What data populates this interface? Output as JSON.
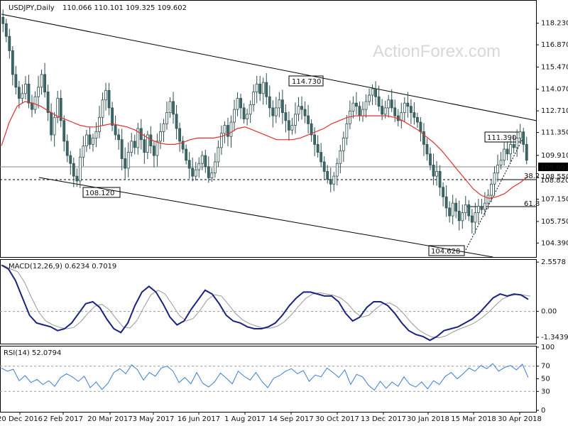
{
  "header": {
    "symbol_label": "USDJPY,Daily",
    "ohlc": "110.066 110.101 109.325 109.602"
  },
  "watermark": "ActionForex.com",
  "chart_data": [
    {
      "type": "candlestick",
      "title": "USDJPY,Daily",
      "ylim": [
        103.6,
        119.6
      ],
      "y_ticks": [
        "118.230",
        "116.870",
        "115.470",
        "114.070",
        "112.710",
        "111.350",
        "109.910",
        "108.550",
        "107.150",
        "105.750",
        "104.390"
      ],
      "x_ticks": [
        "20 Dec 2016",
        "2 Feb 2017",
        "20 Mar 2017",
        "3 May 2017",
        "16 Jun 2017",
        "1 Aug 2017",
        "14 Sep 2017",
        "30 Oct 2017",
        "13 Dec 2017",
        "30 Jan 2018",
        "15 Mar 2018",
        "30 Apr 2018"
      ],
      "last_price": "109.602",
      "level_label": "108.820",
      "level": 108.82,
      "annotations": [
        "114.730",
        "108.120",
        "104.628",
        "111.390"
      ],
      "fib_labels": [
        "38.2",
        "61.8"
      ],
      "close_series": [
        118.2,
        117.4,
        116.5,
        115.0,
        114.2,
        113.5,
        113.8,
        114.4,
        113.2,
        112.8,
        113.6,
        114.2,
        115.0,
        113.9,
        112.6,
        111.2,
        112.3,
        113.5,
        112.1,
        110.8,
        109.9,
        109.4,
        108.6,
        108.3,
        109.8,
        110.5,
        111.2,
        110.6,
        111.0,
        111.4,
        112.3,
        113.4,
        114.0,
        112.9,
        111.8,
        111.2,
        110.9,
        109.7,
        109.1,
        110.1,
        110.8,
        110.4,
        111.6,
        110.9,
        110.1,
        111.2,
        110.5,
        109.9,
        110.8,
        111.4,
        111.9,
        112.6,
        113.3,
        112.5,
        111.6,
        110.8,
        110.3,
        109.6,
        109.1,
        108.6,
        109.0,
        109.4,
        109.9,
        109.2,
        108.5,
        108.8,
        109.5,
        110.4,
        111.3,
        111.8,
        111.1,
        112.0,
        112.8,
        113.5,
        112.9,
        112.2,
        112.5,
        113.1,
        113.9,
        114.4,
        113.8,
        114.5,
        113.6,
        112.9,
        112.4,
        112.9,
        113.4,
        112.6,
        112.1,
        111.5,
        111.8,
        112.5,
        113.0,
        112.8,
        112.4,
        111.9,
        111.2,
        110.6,
        110.1,
        109.5,
        108.9,
        108.4,
        108.1,
        108.6,
        109.4,
        110.2,
        111.0,
        111.9,
        112.7,
        113.2,
        113.0,
        112.4,
        112.8,
        113.3,
        113.7,
        114.1,
        113.6,
        113.0,
        112.5,
        112.9,
        113.4,
        112.9,
        112.4,
        112.1,
        112.6,
        113.2,
        113.0,
        112.6,
        112.3,
        112.0,
        111.4,
        110.6,
        110.0,
        109.3,
        108.6,
        108.9,
        107.9,
        107.3,
        106.6,
        106.1,
        106.9,
        106.4,
        105.8,
        106.3,
        106.8,
        106.1,
        105.7,
        106.3,
        106.7,
        106.5,
        106.9,
        107.4,
        108.1,
        108.8,
        109.3,
        109.6,
        110.3,
        110.0,
        110.6,
        110.4,
        111.0,
        111.39,
        110.6,
        109.6
      ],
      "ma_series": [
        110.5,
        112.0,
        113.0,
        113.3,
        113.2,
        113.0,
        112.7,
        112.4,
        112.2,
        112.0,
        111.8,
        111.7,
        111.7,
        111.8,
        111.9,
        111.8,
        111.7,
        111.5,
        111.2,
        110.9,
        110.7,
        110.6,
        110.6,
        110.7,
        110.9,
        111.0,
        111.0,
        111.0,
        111.1,
        111.3,
        111.6,
        111.7,
        111.5,
        111.3,
        111.1,
        110.9,
        110.9,
        110.9,
        111.0,
        111.2,
        111.4,
        111.6,
        111.9,
        112.1,
        112.3,
        112.4,
        112.4,
        112.4,
        112.4,
        112.4,
        112.3,
        112.1,
        111.8,
        111.5,
        111.1,
        110.7,
        110.2,
        109.6,
        109.0,
        108.4,
        107.8,
        107.4,
        107.2,
        107.3,
        107.5,
        107.9,
        108.2,
        108.6
      ],
      "macd_ylim": [
        -1.6,
        2.6
      ],
      "macd_ticks": [
        "2.5578",
        "0.00",
        "-1.3439"
      ],
      "macd_label": "MACD(12,26,9) 0.6234 0.7019",
      "macd_series": [
        2.4,
        2.2,
        1.6,
        0.7,
        -0.2,
        -0.6,
        -0.7,
        -0.8,
        -1.0,
        -0.9,
        -0.6,
        -0.1,
        0.4,
        0.5,
        0.2,
        -0.4,
        -0.9,
        -1.1,
        -0.6,
        0.3,
        1.0,
        1.3,
        1.0,
        0.4,
        -0.3,
        -0.7,
        -0.5,
        0.1,
        0.6,
        1.1,
        0.9,
        0.4,
        -0.2,
        -0.5,
        -0.6,
        -0.8,
        -0.9,
        -0.9,
        -0.8,
        -0.6,
        -0.2,
        0.3,
        0.7,
        1.0,
        1.0,
        0.9,
        0.8,
        0.8,
        0.5,
        -0.1,
        -0.5,
        -0.3,
        0.2,
        0.5,
        0.5,
        0.3,
        -0.1,
        -0.6,
        -1.0,
        -1.2,
        -1.3,
        -1.5,
        -1.3,
        -1.0,
        -0.9,
        -0.8,
        -0.6,
        -0.4,
        -0.1,
        0.3,
        0.7,
        0.9,
        0.8,
        0.9,
        0.85,
        0.62
      ],
      "rsi_ylim": [
        0,
        100
      ],
      "rsi_ticks": [
        "100",
        "70",
        "50",
        "30",
        "0"
      ],
      "rsi_label": "RSI(14) 52.0794",
      "rsi_series": [
        67,
        62,
        65,
        47,
        55,
        44,
        49,
        41,
        47,
        38,
        52,
        58,
        53,
        46,
        54,
        36,
        45,
        33,
        43,
        60,
        66,
        58,
        72,
        64,
        48,
        60,
        54,
        67,
        70,
        62,
        44,
        52,
        42,
        60,
        43,
        37,
        45,
        59,
        51,
        42,
        62,
        54,
        48,
        60,
        46,
        36,
        51,
        55,
        62,
        66,
        58,
        63,
        46,
        56,
        53,
        67,
        60,
        52,
        64,
        41,
        57,
        53,
        40,
        32,
        46,
        35,
        45,
        38,
        53,
        41,
        37,
        45,
        34,
        47,
        41,
        54,
        60,
        50,
        58,
        67,
        62,
        71,
        66,
        74,
        62,
        68,
        71,
        64,
        73,
        52
      ]
    }
  ]
}
